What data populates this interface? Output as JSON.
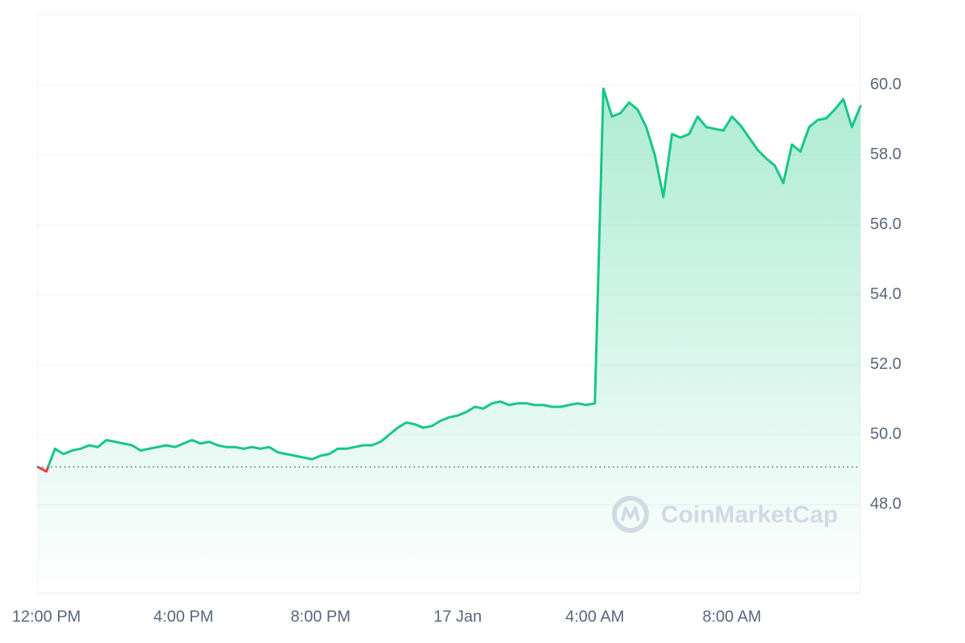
{
  "chart_data": {
    "type": "line",
    "categories": [
      null,
      "12:00 PM",
      null,
      null,
      null,
      null,
      null,
      null,
      null,
      null,
      null,
      null,
      null,
      null,
      null,
      null,
      null,
      "4:00 PM",
      null,
      null,
      null,
      null,
      null,
      null,
      null,
      null,
      null,
      null,
      null,
      null,
      null,
      null,
      null,
      "8:00 PM",
      null,
      null,
      null,
      null,
      null,
      null,
      null,
      null,
      null,
      null,
      null,
      null,
      null,
      null,
      null,
      "17 Jan",
      null,
      null,
      null,
      null,
      null,
      null,
      null,
      null,
      null,
      null,
      null,
      null,
      null,
      null,
      null,
      "4:00 AM",
      null,
      null,
      null,
      null,
      null,
      null,
      null,
      null,
      null,
      null,
      null,
      null,
      null,
      null,
      null,
      "8:00 AM",
      null,
      null,
      null,
      null,
      null,
      null,
      null,
      null,
      null,
      null,
      null,
      null,
      null,
      null,
      null
    ],
    "values": [
      49.08,
      48.95,
      49.6,
      49.45,
      49.55,
      49.6,
      49.7,
      49.65,
      49.85,
      49.8,
      49.75,
      49.7,
      49.55,
      49.6,
      49.65,
      49.7,
      49.65,
      49.75,
      49.85,
      49.75,
      49.8,
      49.7,
      49.65,
      49.65,
      49.6,
      49.65,
      49.6,
      49.65,
      49.5,
      49.45,
      49.4,
      49.35,
      49.3,
      49.4,
      49.45,
      49.6,
      49.6,
      49.65,
      49.7,
      49.7,
      49.8,
      50.0,
      50.2,
      50.35,
      50.3,
      50.2,
      50.25,
      50.4,
      50.5,
      50.55,
      50.65,
      50.8,
      50.75,
      50.9,
      50.95,
      50.85,
      50.9,
      50.9,
      50.85,
      50.85,
      50.8,
      50.8,
      50.85,
      50.9,
      50.85,
      50.9,
      59.9,
      59.1,
      59.2,
      59.5,
      59.3,
      58.8,
      58.0,
      56.8,
      58.6,
      58.5,
      58.6,
      59.1,
      58.8,
      58.75,
      58.7,
      59.1,
      58.85,
      58.5,
      58.15,
      57.9,
      57.7,
      57.2,
      58.3,
      58.1,
      58.8,
      59.0,
      59.05,
      59.3,
      59.6,
      58.8,
      59.4
    ],
    "color": "#16c784",
    "down_color": "#ea3943",
    "reference": 49.08,
    "ylim": [
      45.47,
      62.02
    ],
    "yticks": [
      {
        "value": 48,
        "label": "48.0"
      },
      {
        "value": 50,
        "label": "50.0"
      },
      {
        "value": 52,
        "label": "52.0"
      },
      {
        "value": 54,
        "label": "54.0"
      },
      {
        "value": 56,
        "label": "56.0"
      },
      {
        "value": 58,
        "label": "58.0"
      },
      {
        "value": 60,
        "label": "60.0"
      }
    ],
    "grid": true,
    "watermark": "CoinMarketCap"
  }
}
